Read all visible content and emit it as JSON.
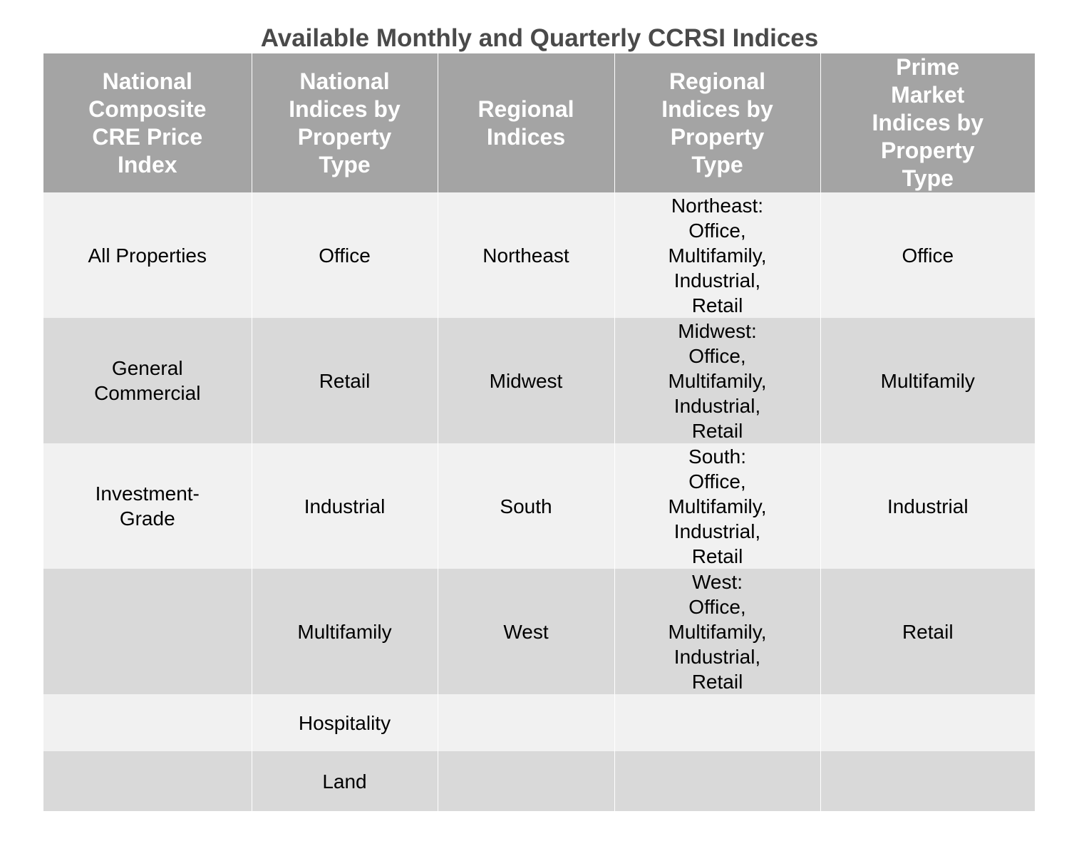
{
  "title": "Available Monthly and Quarterly CCRSI Indices",
  "table": {
    "headers": [
      "National\nComposite\nCRE Price\nIndex",
      "National\nIndices by\nProperty\nType",
      "Regional\nIndices",
      "Regional\nIndices by\nProperty\nType",
      "Prime\nMarket\nIndices by\nProperty\nType"
    ],
    "rows": [
      [
        "All Properties",
        "Office",
        "Northeast",
        "Northeast:\nOffice,\nMultifamily,\nIndustrial,\nRetail",
        "Office"
      ],
      [
        "General\nCommercial",
        "Retail",
        "Midwest",
        "Midwest:\nOffice,\nMultifamily,\nIndustrial,\nRetail",
        "Multifamily"
      ],
      [
        "Investment-\nGrade",
        "Industrial",
        "South",
        "South:\nOffice,\nMultifamily,\nIndustrial,\nRetail",
        "Industrial"
      ],
      [
        "",
        "Multifamily",
        "West",
        "West:\nOffice,\nMultifamily,\nIndustrial,\nRetail",
        "Retail"
      ],
      [
        "",
        "Hospitality",
        "",
        "",
        ""
      ],
      [
        "",
        "Land",
        "",
        "",
        ""
      ]
    ]
  },
  "colors": {
    "header_bg": "#a4a4a4",
    "header_text": "#ffffff",
    "row_light": "#f1f1f1",
    "row_dark": "#d9d9d9",
    "title_text": "#4a4a4a"
  }
}
